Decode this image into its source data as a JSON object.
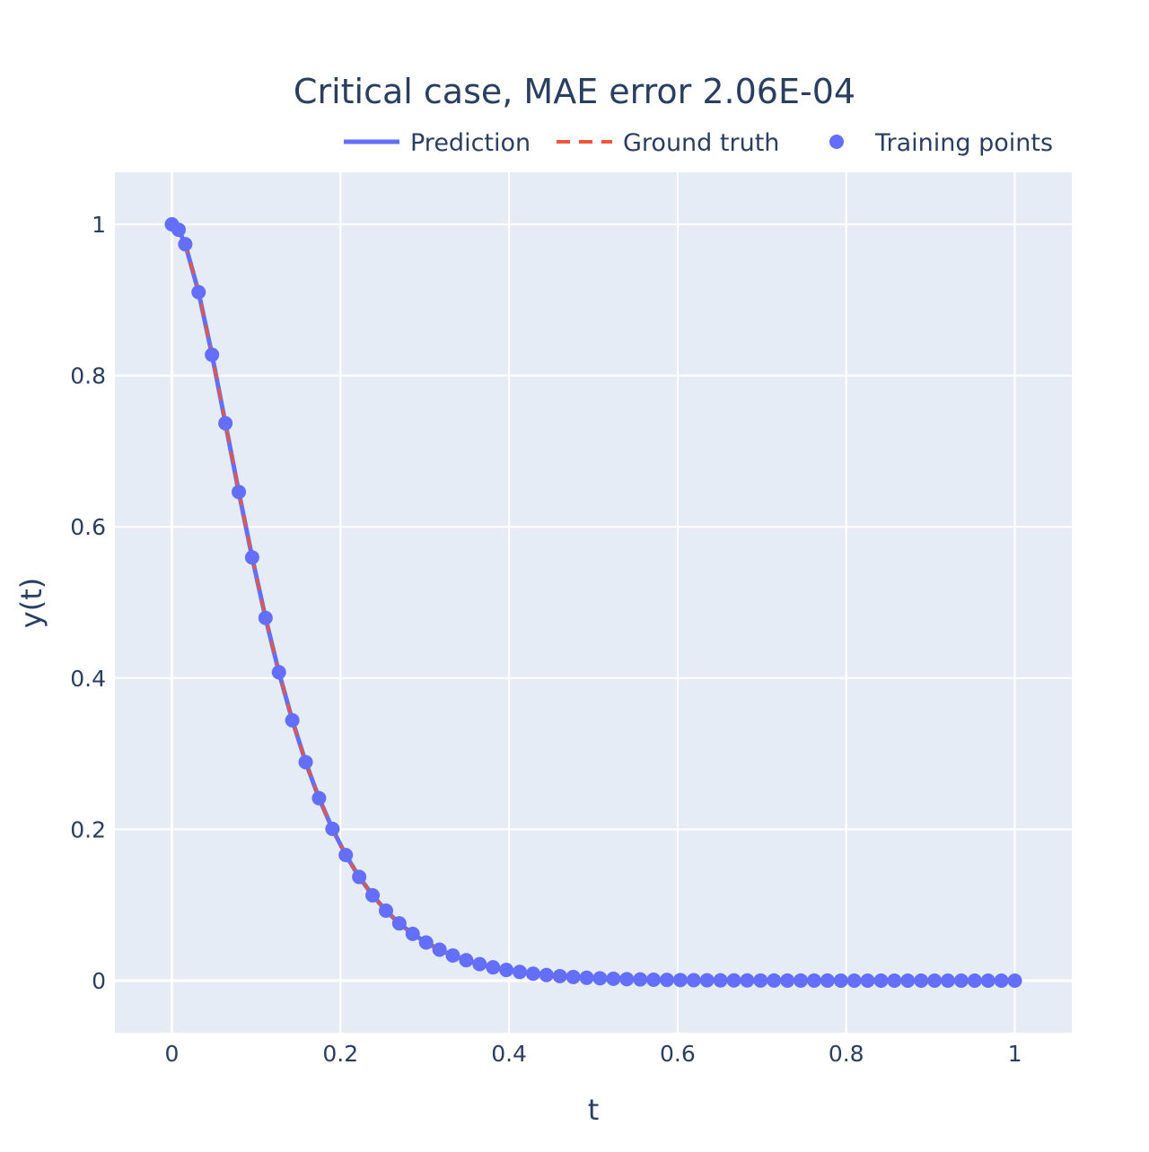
{
  "chart_data": {
    "type": "line",
    "title": "Critical case, MAE error 2.06E-04",
    "xlabel": "t",
    "ylabel": "y(t)",
    "xlim": [
      -0.0676,
      1.0676
    ],
    "ylim": [
      -0.0688,
      1.0688
    ],
    "grid": true,
    "legend_placement": "top-right",
    "xticks": [
      0,
      0.2,
      0.4,
      0.6,
      0.8,
      1
    ],
    "xtick_labels": [
      "0",
      "0.2",
      "0.4",
      "0.6",
      "0.8",
      "1"
    ],
    "yticks": [
      0,
      0.2,
      0.4,
      0.6,
      0.8,
      1
    ],
    "ytick_labels": [
      "0",
      "0.2",
      "0.4",
      "0.6",
      "0.8",
      "1"
    ],
    "colors": {
      "background": "#e5ecf6",
      "prediction": "#636efa",
      "ground_truth": "#EF553B",
      "training": "#636efa",
      "text": "#2a3f5f"
    },
    "series": [
      {
        "name": "Prediction",
        "style": "solid-line"
      },
      {
        "name": "Ground truth",
        "style": "dashed-line"
      },
      {
        "name": "Training points",
        "style": "markers"
      }
    ],
    "x": [
      0,
      0.008,
      0.0159,
      0.0317,
      0.0476,
      0.0635,
      0.0794,
      0.0952,
      0.1111,
      0.127,
      0.1429,
      0.1587,
      0.1746,
      0.1905,
      0.2063,
      0.2222,
      0.2381,
      0.254,
      0.2698,
      0.2857,
      0.3016,
      0.3175,
      0.3333,
      0.3492,
      0.3651,
      0.381,
      0.3968,
      0.4127,
      0.4286,
      0.4444,
      0.4603,
      0.4762,
      0.4921,
      0.5079,
      0.5238,
      0.5397,
      0.5556,
      0.5714,
      0.5873,
      0.6032,
      0.619,
      0.6349,
      0.6508,
      0.6667,
      0.6825,
      0.6984,
      0.7143,
      0.7302,
      0.746,
      0.7619,
      0.7778,
      0.7937,
      0.8095,
      0.8254,
      0.8413,
      0.8571,
      0.873,
      0.8889,
      0.9048,
      0.9206,
      0.9365,
      0.9524,
      0.9683,
      0.9841,
      1
    ],
    "y": [
      1,
      0.9928,
      0.9737,
      0.9103,
      0.8275,
      0.7369,
      0.6461,
      0.5595,
      0.4796,
      0.4077,
      0.3442,
      0.2889,
      0.2412,
      0.2006,
      0.1661,
      0.1371,
      0.1128,
      0.0925,
      0.0757,
      0.0618,
      0.0504,
      0.0409,
      0.0332,
      0.027,
      0.0218,
      0.0176,
      0.0142,
      0.0115,
      0.0092,
      0.0074,
      0.006,
      0.0048,
      0.0038,
      0.0031,
      0.0025,
      0.002,
      0.0016,
      0.0012,
      0.001,
      0.0008,
      0.0006,
      0.0005,
      0.0004,
      0.0003,
      0.0003,
      0.0002,
      0.0002,
      0.0001,
      0.0001,
      0.0001,
      0.0001,
      0,
      0,
      0,
      0,
      0,
      0,
      0,
      0,
      0,
      0,
      0,
      0,
      0,
      0
    ]
  }
}
